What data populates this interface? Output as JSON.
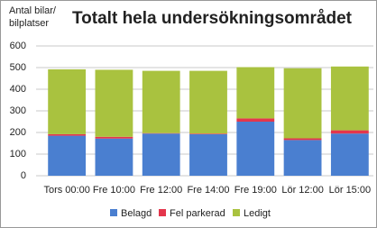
{
  "chart_data": {
    "type": "stacked-bar",
    "title": "Totalt hela undersökningsområdet",
    "y_label": [
      "Antal bilar/",
      "bilplatser"
    ],
    "categories": [
      "Tors 00:00",
      "Fre 10:00",
      "Fre 12:00",
      "Fre 14:00",
      "Fre 19:00",
      "Lör 12:00",
      "Lör 15:00"
    ],
    "series": [
      {
        "name": "Belagd",
        "color": "#4a7fd0",
        "values": [
          185,
          172,
          195,
          192,
          250,
          165,
          195
        ]
      },
      {
        "name": "Fel parkerad",
        "color": "#e4364c",
        "values": [
          7,
          8,
          2,
          3,
          15,
          8,
          15
        ]
      },
      {
        "name": "Ledigt",
        "color": "#a9c23f",
        "values": [
          300,
          310,
          288,
          290,
          237,
          324,
          295
        ]
      }
    ],
    "ylim": [
      0,
      600
    ],
    "yticks": [
      0,
      100,
      200,
      300,
      400,
      500,
      600
    ],
    "grid": true,
    "legend": "bottom"
  }
}
